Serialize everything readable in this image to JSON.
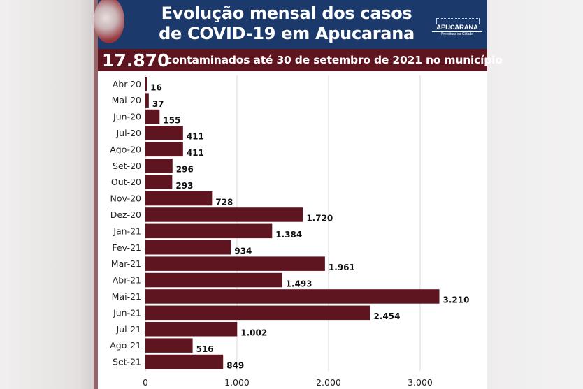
{
  "header": {
    "title_line1": "Evolução mensal dos casos",
    "title_line2": "de COVID-19 em Apucarana",
    "logo_name": "APUCARANA",
    "logo_sub": "Prefeitura da Cidade"
  },
  "band": {
    "total": "17.870",
    "text": "contaminados até 30 de setembro de 2021 no município"
  },
  "colors": {
    "header": "#1b3a6b",
    "band": "#5e1520",
    "bar": "#5e1520",
    "grid": "#d9d9d9"
  },
  "chart_data": {
    "type": "bar",
    "orientation": "horizontal",
    "categories": [
      "Abr-20",
      "Mai-20",
      "Jun-20",
      "Jul-20",
      "Ago-20",
      "Set-20",
      "Out-20",
      "Nov-20",
      "Dez-20",
      "Jan-21",
      "Fev-21",
      "Mar-21",
      "Abr-21",
      "Mai-21",
      "Jun-21",
      "Jul-21",
      "Ago-21",
      "Set-21"
    ],
    "values": [
      16,
      37,
      155,
      411,
      411,
      296,
      293,
      728,
      1720,
      1384,
      934,
      1961,
      1493,
      3210,
      2454,
      1002,
      516,
      849
    ],
    "data_labels": [
      "16",
      "37",
      "155",
      "411",
      "411",
      "296",
      "293",
      "728",
      "1.720",
      "1.384",
      "934",
      "1.961",
      "1.493",
      "3.210",
      "2.454",
      "1.002",
      "516",
      "849"
    ],
    "xticks": [
      0,
      1000,
      2000,
      3000
    ],
    "xtick_labels": [
      "0",
      "1.000",
      "2.000",
      "3.000"
    ],
    "xlim": [
      0,
      3600
    ],
    "grid": true
  }
}
